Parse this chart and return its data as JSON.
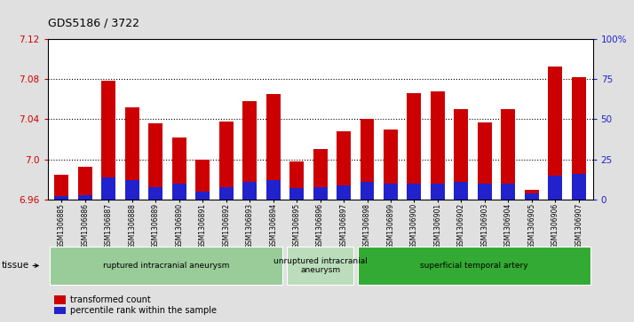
{
  "title": "GDS5186 / 3722",
  "samples": [
    "GSM1306885",
    "GSM1306886",
    "GSM1306887",
    "GSM1306888",
    "GSM1306889",
    "GSM1306890",
    "GSM1306891",
    "GSM1306892",
    "GSM1306893",
    "GSM1306894",
    "GSM1306895",
    "GSM1306896",
    "GSM1306897",
    "GSM1306898",
    "GSM1306899",
    "GSM1306900",
    "GSM1306901",
    "GSM1306902",
    "GSM1306903",
    "GSM1306904",
    "GSM1306905",
    "GSM1306906",
    "GSM1306907"
  ],
  "transformed_count": [
    6.985,
    6.993,
    7.078,
    7.052,
    7.036,
    7.022,
    7.0,
    7.038,
    7.058,
    7.065,
    6.998,
    7.01,
    7.028,
    7.04,
    7.03,
    7.066,
    7.068,
    7.05,
    7.037,
    7.05,
    6.97,
    7.092,
    7.082
  ],
  "percentile_rank": [
    2,
    3,
    14,
    12,
    8,
    10,
    5,
    8,
    11,
    12,
    7,
    8,
    9,
    11,
    10,
    10,
    10,
    11,
    10,
    10,
    4,
    15,
    16
  ],
  "ylim_left": [
    6.96,
    7.12
  ],
  "ylim_right": [
    0,
    100
  ],
  "yticks_left": [
    6.96,
    7.0,
    7.04,
    7.08,
    7.12
  ],
  "yticks_right": [
    0,
    25,
    50,
    75,
    100
  ],
  "ytick_labels_right": [
    "0",
    "25",
    "50",
    "75",
    "100%"
  ],
  "bar_color": "#cc0000",
  "percentile_color": "#2222cc",
  "fig_bg": "#e0e0e0",
  "plot_bg": "#ffffff",
  "groups": [
    {
      "label": "ruptured intracranial aneurysm",
      "start": 0,
      "end": 10,
      "color": "#99cc99"
    },
    {
      "label": "unruptured intracranial\naneurysm",
      "start": 10,
      "end": 13,
      "color": "#bbddbb"
    },
    {
      "label": "superficial temporal artery",
      "start": 13,
      "end": 23,
      "color": "#33aa33"
    }
  ],
  "tissue_label": "tissue",
  "legend_items": [
    {
      "label": "transformed count",
      "color": "#cc0000"
    },
    {
      "label": "percentile rank within the sample",
      "color": "#2222cc"
    }
  ],
  "grid_lines": [
    7.0,
    7.04,
    7.08
  ]
}
